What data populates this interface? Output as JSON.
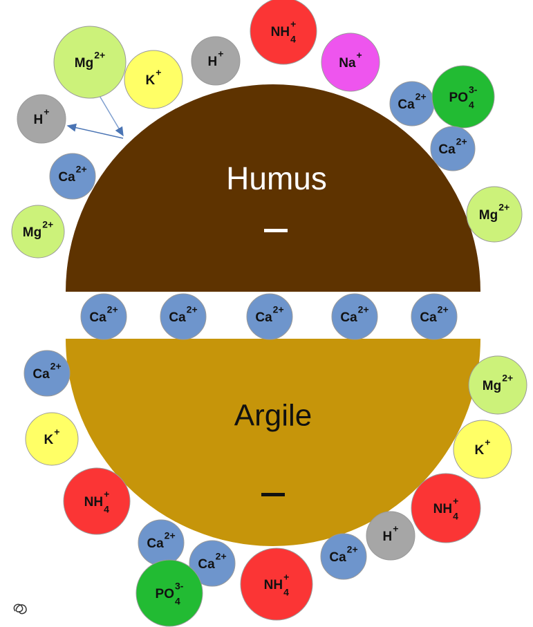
{
  "humus": {
    "label": "Humus"
  },
  "argile": {
    "label": "Argile"
  },
  "ions": [
    {
      "symbol": "Mg",
      "sup": "2+"
    },
    {
      "symbol": "K",
      "sup": "+"
    },
    {
      "symbol": "H",
      "sup": "+"
    },
    {
      "symbol": "NH",
      "sup": "+",
      "sub": "4"
    },
    {
      "symbol": "Na",
      "sup": "+"
    },
    {
      "symbol": "Ca",
      "sup": "2+"
    },
    {
      "symbol": "PO",
      "sup": "3-",
      "sub": "4"
    },
    {
      "symbol": "Ca",
      "sup": "2+"
    },
    {
      "symbol": "H",
      "sup": "+"
    },
    {
      "symbol": "Ca",
      "sup": "2+"
    },
    {
      "symbol": "Mg",
      "sup": "2+"
    },
    {
      "symbol": "Mg",
      "sup": "2+"
    },
    {
      "symbol": "Ca",
      "sup": "2+"
    },
    {
      "symbol": "Ca",
      "sup": "2+"
    },
    {
      "symbol": "Ca",
      "sup": "2+"
    },
    {
      "symbol": "Ca",
      "sup": "2+"
    },
    {
      "symbol": "Ca",
      "sup": "2+"
    },
    {
      "symbol": "Ca",
      "sup": "2+"
    },
    {
      "symbol": "Mg",
      "sup": "2+"
    },
    {
      "symbol": "K",
      "sup": "+"
    },
    {
      "symbol": "K",
      "sup": "+"
    },
    {
      "symbol": "NH",
      "sup": "+",
      "sub": "4"
    },
    {
      "symbol": "NH",
      "sup": "+",
      "sub": "4"
    },
    {
      "symbol": "H",
      "sup": "+"
    },
    {
      "symbol": "Ca",
      "sup": "2+"
    },
    {
      "symbol": "Ca",
      "sup": "2+"
    },
    {
      "symbol": "Ca",
      "sup": "2+"
    },
    {
      "symbol": "NH",
      "sup": "+",
      "sub": "4"
    },
    {
      "symbol": "PO",
      "sup": "3-",
      "sub": "4"
    }
  ]
}
